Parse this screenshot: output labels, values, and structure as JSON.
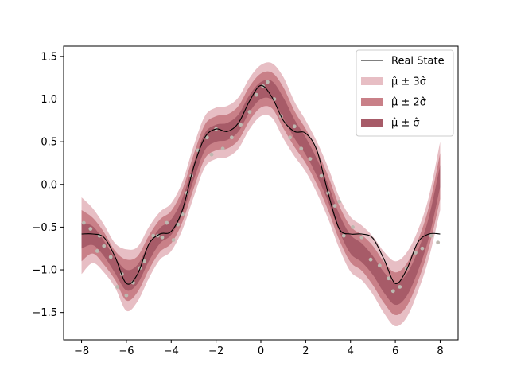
{
  "chart_data": {
    "type": "line",
    "title": "",
    "xlabel": "",
    "ylabel": "",
    "xlim": [
      -8.8,
      8.8
    ],
    "ylim": [
      -1.82,
      1.62
    ],
    "x_ticks": [
      {
        "value": -8,
        "label": "−8"
      },
      {
        "value": -6,
        "label": "−6"
      },
      {
        "value": -4,
        "label": "−4"
      },
      {
        "value": -2,
        "label": "−2"
      },
      {
        "value": 0,
        "label": "0"
      },
      {
        "value": 2,
        "label": "2"
      },
      {
        "value": 4,
        "label": "4"
      },
      {
        "value": 6,
        "label": "6"
      },
      {
        "value": 8,
        "label": "8"
      }
    ],
    "y_ticks": [
      {
        "value": -1.5,
        "label": "−1.5"
      },
      {
        "value": -1.0,
        "label": "−1.0"
      },
      {
        "value": -0.5,
        "label": "−0.5"
      },
      {
        "value": 0.0,
        "label": "0.0"
      },
      {
        "value": 0.5,
        "label": "0.5"
      },
      {
        "value": 1.0,
        "label": "1.0"
      },
      {
        "value": 1.5,
        "label": "1.5"
      }
    ],
    "grid": false,
    "legend": {
      "placement": "top-right",
      "entries": [
        {
          "label": "Real State",
          "kind": "line",
          "color": "#000000"
        },
        {
          "label": "μ̂ ± 3σ̂",
          "kind": "band",
          "color": "#e7bec4"
        },
        {
          "label": "μ̂ ± 2σ̂",
          "kind": "band",
          "color": "#c98088"
        },
        {
          "label": "μ̂ ± σ̂",
          "kind": "band",
          "color": "#a75b68"
        }
      ]
    },
    "x": [
      -8.0,
      -7.5,
      -7.0,
      -6.5,
      -6.0,
      -5.5,
      -5.0,
      -4.5,
      -4.0,
      -3.5,
      -3.0,
      -2.5,
      -2.0,
      -1.5,
      -1.0,
      -0.5,
      0.0,
      0.5,
      1.0,
      1.5,
      2.0,
      2.5,
      3.0,
      3.5,
      4.0,
      4.5,
      5.0,
      5.5,
      6.0,
      6.5,
      7.0,
      7.5,
      8.0
    ],
    "series": [
      {
        "name": "Real State",
        "color": "#000000",
        "values": [
          -0.58,
          -0.58,
          -0.62,
          -0.85,
          -1.16,
          -1.05,
          -0.7,
          -0.58,
          -0.55,
          -0.3,
          0.2,
          0.55,
          0.65,
          0.62,
          0.72,
          0.98,
          1.16,
          1.02,
          0.75,
          0.62,
          0.6,
          0.4,
          -0.1,
          -0.52,
          -0.58,
          -0.58,
          -0.63,
          -0.88,
          -1.16,
          -1.0,
          -0.68,
          -0.58,
          -0.58
        ]
      }
    ],
    "bands": [
      {
        "name": "μ̂ ± 3σ̂",
        "color": "#e7bec4",
        "mean": [
          -0.6,
          -0.6,
          -0.75,
          -0.95,
          -1.12,
          -1.05,
          -0.8,
          -0.6,
          -0.5,
          -0.25,
          0.15,
          0.5,
          0.6,
          0.62,
          0.72,
          0.95,
          1.1,
          1.1,
          0.9,
          0.65,
          0.45,
          0.2,
          -0.1,
          -0.45,
          -0.7,
          -0.8,
          -0.95,
          -1.15,
          -1.28,
          -1.18,
          -0.9,
          -0.5,
          0.1
        ],
        "half_width": [
          0.45,
          0.32,
          0.28,
          0.26,
          0.36,
          0.32,
          0.3,
          0.28,
          0.28,
          0.28,
          0.3,
          0.3,
          0.3,
          0.3,
          0.3,
          0.3,
          0.3,
          0.32,
          0.36,
          0.32,
          0.3,
          0.3,
          0.3,
          0.3,
          0.32,
          0.32,
          0.34,
          0.36,
          0.38,
          0.38,
          0.36,
          0.36,
          0.4
        ]
      },
      {
        "name": "μ̂ ± 2σ̂",
        "color": "#c98088",
        "mean": [
          -0.6,
          -0.6,
          -0.75,
          -0.95,
          -1.12,
          -1.05,
          -0.8,
          -0.6,
          -0.5,
          -0.25,
          0.15,
          0.5,
          0.6,
          0.62,
          0.72,
          0.95,
          1.1,
          1.1,
          0.9,
          0.65,
          0.45,
          0.2,
          -0.1,
          -0.45,
          -0.7,
          -0.8,
          -0.95,
          -1.15,
          -1.28,
          -1.18,
          -0.9,
          -0.5,
          0.1
        ],
        "half_width": [
          0.3,
          0.21,
          0.19,
          0.17,
          0.24,
          0.21,
          0.2,
          0.19,
          0.19,
          0.19,
          0.2,
          0.2,
          0.2,
          0.2,
          0.2,
          0.2,
          0.2,
          0.21,
          0.24,
          0.21,
          0.2,
          0.2,
          0.2,
          0.2,
          0.21,
          0.21,
          0.23,
          0.24,
          0.25,
          0.25,
          0.24,
          0.24,
          0.27
        ]
      },
      {
        "name": "μ̂ ± σ̂",
        "color": "#a75b68",
        "mean": [
          -0.6,
          -0.6,
          -0.75,
          -0.95,
          -1.12,
          -1.05,
          -0.8,
          -0.6,
          -0.5,
          -0.25,
          0.15,
          0.5,
          0.6,
          0.62,
          0.72,
          0.95,
          1.1,
          1.1,
          0.9,
          0.65,
          0.45,
          0.2,
          -0.1,
          -0.45,
          -0.7,
          -0.8,
          -0.95,
          -1.15,
          -1.28,
          -1.18,
          -0.9,
          -0.5,
          0.1
        ],
        "half_width": [
          0.15,
          0.11,
          0.09,
          0.09,
          0.12,
          0.11,
          0.1,
          0.09,
          0.09,
          0.09,
          0.1,
          0.1,
          0.1,
          0.1,
          0.1,
          0.1,
          0.1,
          0.11,
          0.12,
          0.11,
          0.1,
          0.1,
          0.1,
          0.1,
          0.11,
          0.11,
          0.11,
          0.12,
          0.13,
          0.13,
          0.12,
          0.12,
          0.13
        ]
      }
    ],
    "observations": {
      "color": "#bdb8b0",
      "points": [
        [
          -7.9,
          -0.45
        ],
        [
          -7.6,
          -0.52
        ],
        [
          -7.3,
          -0.78
        ],
        [
          -7.2,
          -0.6
        ],
        [
          -7.0,
          -0.72
        ],
        [
          -6.7,
          -0.85
        ],
        [
          -6.2,
          -1.05
        ],
        [
          -6.0,
          -1.3
        ],
        [
          -5.7,
          -1.15
        ],
        [
          -5.4,
          -0.98
        ],
        [
          -5.2,
          -0.9
        ],
        [
          -4.8,
          -0.6
        ],
        [
          -4.6,
          -0.6
        ],
        [
          -4.4,
          -0.62
        ],
        [
          -4.2,
          -0.45
        ],
        [
          -3.9,
          -0.65
        ],
        [
          -3.7,
          -0.47
        ],
        [
          -3.5,
          -0.35
        ],
        [
          -3.3,
          -0.1
        ],
        [
          -3.1,
          0.1
        ],
        [
          -2.8,
          0.4
        ],
        [
          -2.4,
          0.55
        ],
        [
          -2.0,
          0.65
        ],
        [
          -1.7,
          0.42
        ],
        [
          -1.3,
          0.55
        ],
        [
          -0.9,
          0.7
        ],
        [
          -0.5,
          0.85
        ],
        [
          -0.2,
          1.05
        ],
        [
          0.1,
          1.15
        ],
        [
          0.3,
          1.2
        ],
        [
          0.6,
          1.0
        ],
        [
          0.9,
          0.8
        ],
        [
          1.3,
          0.55
        ],
        [
          1.8,
          0.42
        ],
        [
          2.2,
          0.3
        ],
        [
          2.7,
          0.1
        ],
        [
          3.0,
          -0.1
        ],
        [
          3.3,
          -0.25
        ],
        [
          3.7,
          -0.6
        ],
        [
          4.1,
          -0.5
        ],
        [
          4.5,
          -0.62
        ],
        [
          4.9,
          -0.88
        ],
        [
          5.3,
          -0.95
        ],
        [
          5.7,
          -1.1
        ],
        [
          5.9,
          -1.25
        ],
        [
          6.2,
          -1.2
        ],
        [
          6.5,
          -0.98
        ],
        [
          6.9,
          -0.8
        ],
        [
          7.2,
          -0.75
        ],
        [
          7.6,
          -0.6
        ],
        [
          7.9,
          -0.68
        ],
        [
          -2.2,
          0.35
        ],
        [
          1.5,
          0.68
        ],
        [
          -6.4,
          -1.2
        ],
        [
          3.5,
          -0.2
        ]
      ]
    }
  }
}
